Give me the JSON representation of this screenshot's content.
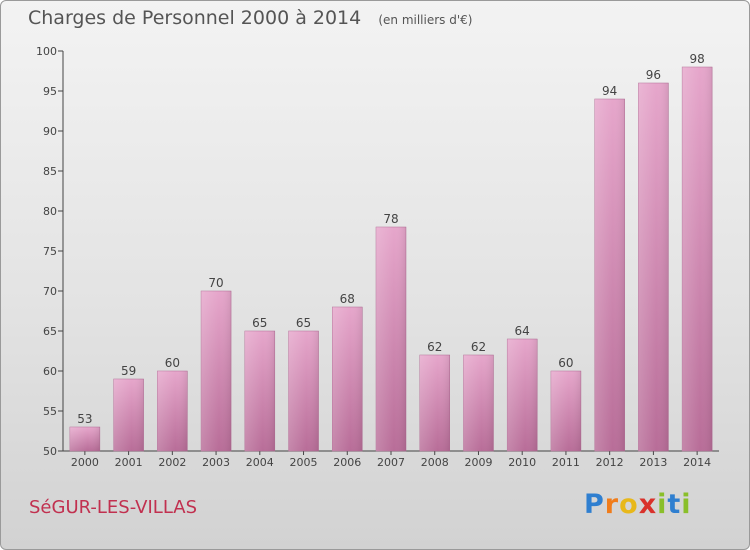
{
  "header": {
    "title": "Charges de Personnel 2000 à 2014",
    "subtitle": "(en milliers d'€)"
  },
  "footer": {
    "town": "SéGUR-LES-VILLAS",
    "brand_letters": [
      {
        "ch": "P",
        "color": "#2f7fd0"
      },
      {
        "ch": "r",
        "color": "#f07c1a"
      },
      {
        "ch": "o",
        "color": "#e8b81a"
      },
      {
        "ch": "x",
        "color": "#d9312b"
      },
      {
        "ch": "i",
        "color": "#8abf2a"
      },
      {
        "ch": "t",
        "color": "#2f7fd0"
      },
      {
        "ch": "i",
        "color": "#8abf2a"
      }
    ]
  },
  "chart_data": {
    "type": "bar",
    "categories": [
      "2000",
      "2001",
      "2002",
      "2003",
      "2004",
      "2005",
      "2006",
      "2007",
      "2008",
      "2009",
      "2010",
      "2011",
      "2012",
      "2013",
      "2014"
    ],
    "values": [
      53,
      59,
      60,
      70,
      65,
      65,
      68,
      78,
      62,
      62,
      64,
      60,
      94,
      96,
      98
    ],
    "title": "Charges de Personnel 2000 à 2014",
    "subtitle": "(en milliers d'€)",
    "ylim": [
      50,
      100
    ],
    "yticks": [
      50,
      55,
      60,
      65,
      70,
      75,
      80,
      85,
      90,
      95,
      100
    ],
    "grid": false,
    "legend": "none",
    "bar_color": "#d98fb8"
  }
}
